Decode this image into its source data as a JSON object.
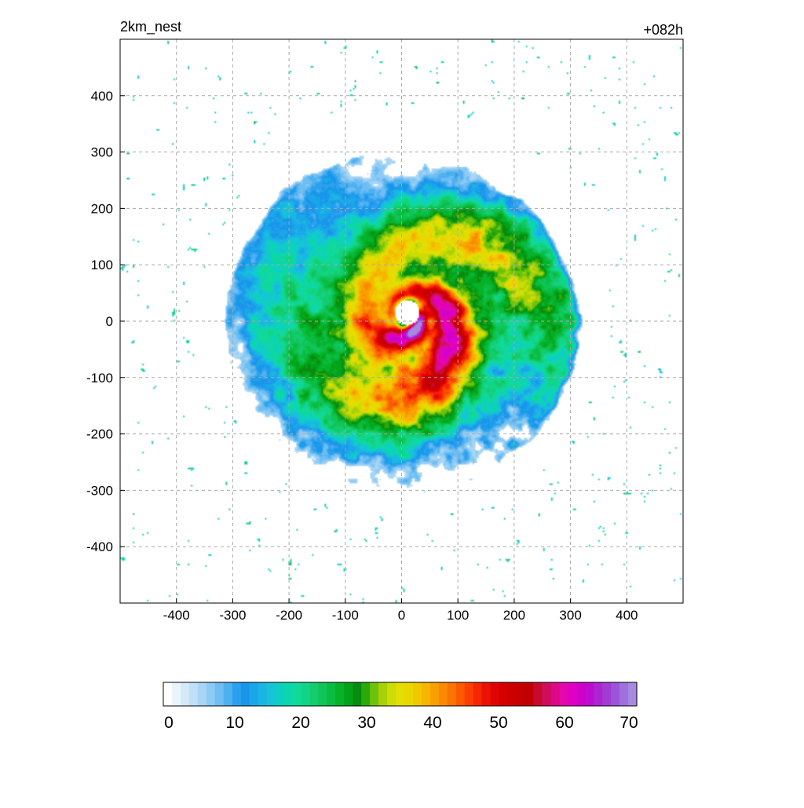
{
  "chart_data": {
    "type": "heatmap",
    "title": "2km_nest",
    "subtitle": "+082h",
    "xlabel": "",
    "ylabel": "",
    "xlim": [
      -500,
      500
    ],
    "ylim": [
      -500,
      500
    ],
    "grid": true,
    "x_ticks": [
      -400,
      -300,
      -200,
      -100,
      0,
      100,
      200,
      300,
      400
    ],
    "y_ticks": [
      400,
      300,
      200,
      100,
      0,
      -100,
      -200,
      -300,
      -400
    ],
    "x_tick_labels": [
      "-400",
      "-300",
      "-200",
      "-100",
      "0",
      "100",
      "200",
      "300",
      "400"
    ],
    "y_tick_labels": [
      "400",
      "300",
      "200",
      "100",
      "0",
      "-100",
      "-200",
      "-300",
      "-400"
    ],
    "feature": {
      "center": [
        10,
        15
      ],
      "eye_radius": 22,
      "max_extent": 300,
      "peak_value": 52
    },
    "colorbar": {
      "min": 0,
      "max": 70,
      "ticks": [
        0,
        10,
        20,
        30,
        40,
        50,
        60,
        70
      ],
      "tick_labels": [
        "0",
        "10",
        "20",
        "30",
        "40",
        "50",
        "60",
        "70"
      ],
      "colors": [
        "#ffffff",
        "#eaf4fb",
        "#d4eaf8",
        "#bfe0f7",
        "#a9d5f5",
        "#8ccbf4",
        "#6ebef3",
        "#4fb0f0",
        "#2ba0ef",
        "#1996ea",
        "#1aa6e9",
        "#1bb5e4",
        "#16c3d8",
        "#0ecfc4",
        "#0dd6ad",
        "#10d99a",
        "#12d485",
        "#12cc6e",
        "#0fc558",
        "#0abc40",
        "#06b22a",
        "#03a319",
        "#078c10",
        "#2ba90a",
        "#6fc20a",
        "#a7d109",
        "#ccdc05",
        "#e3df02",
        "#ebd700",
        "#f1c800",
        "#f6b500",
        "#f8a000",
        "#fa8a00",
        "#fb7300",
        "#fc5a00",
        "#fb3f00",
        "#f52603",
        "#ec1105",
        "#e00505",
        "#d60000",
        "#cd0000",
        "#c60000",
        "#c20004",
        "#c60a2c",
        "#d00d5a",
        "#db0a85",
        "#e506ad",
        "#e000c4",
        "#cf00ca",
        "#bd0ccd",
        "#ae24d0",
        "#a13bd3",
        "#9b55d8",
        "#a070dc",
        "#a889e2"
      ]
    }
  }
}
